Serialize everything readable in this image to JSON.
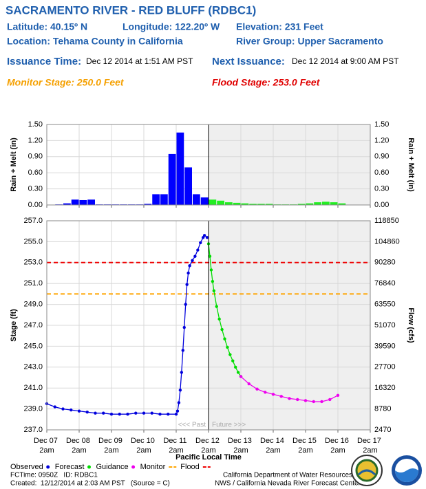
{
  "header": {
    "title": "SACRAMENTO RIVER - RED BLUFF (RDBC1)",
    "latitude": "Latitude: 40.15º N",
    "longitude": "Longitude: 122.20º W",
    "elevation": "Elevation: 231 Feet",
    "location": "Location: Tehama County in California",
    "river_group": "River Group: Upper Sacramento",
    "issuance_label": "Issuance Time:",
    "issuance_time": "Dec 12 2014 at 1:51 AM PST",
    "next_label": "Next Issuance:",
    "next_time": "Dec 12 2014 at 9:00 AM PST",
    "monitor_stage": "Monitor Stage: 250.0 Feet",
    "flood_stage": "Flood Stage: 253.0 Feet"
  },
  "chart_data": [
    {
      "type": "bar",
      "ylabel": "Rain + Melt (in)",
      "xlim": [
        "12-07T02:00",
        "12-17T02:00"
      ],
      "now": "12-12T02:00",
      "xticks": [
        "12-07T02:00",
        "12-08T02:00",
        "12-09T02:00",
        "12-10T02:00",
        "12-11T02:00",
        "12-12T02:00",
        "12-13T02:00",
        "12-14T02:00",
        "12-15T02:00",
        "12-16T02:00",
        "12-17T02:00"
      ],
      "ylim": [
        0,
        1.5
      ],
      "yticks": [
        {
          "value": 0,
          "label": "0.00"
        },
        {
          "value": 0.3,
          "label": "0.30"
        },
        {
          "value": 0.6,
          "label": "0.60"
        },
        {
          "value": 0.9,
          "label": "0.90"
        },
        {
          "value": 1.2,
          "label": "1.20"
        },
        {
          "value": 1.5,
          "label": "1.50"
        }
      ],
      "grid": true,
      "series": [
        {
          "color": "#0000ff",
          "x": [
            "12-07T02:00",
            "12-07T08:00",
            "12-07T14:00",
            "12-07T20:00",
            "12-08T02:00",
            "12-08T08:00",
            "12-08T14:00",
            "12-08T20:00",
            "12-09T02:00",
            "12-09T08:00",
            "12-09T14:00",
            "12-09T20:00",
            "12-10T02:00",
            "12-10T08:00",
            "12-10T14:00",
            "12-10T20:00",
            "12-11T02:00",
            "12-11T08:00",
            "12-11T14:00",
            "12-11T20:00"
          ],
          "values": [
            0,
            0.01,
            0.03,
            0.1,
            0.09,
            0.1,
            0.01,
            0.01,
            0.01,
            0.01,
            0.01,
            0.01,
            0.02,
            0.2,
            0.2,
            0.95,
            1.35,
            0.7,
            0.2,
            0.14
          ]
        },
        {
          "color": "#22ee22",
          "x": [
            "12-12T02:00",
            "12-12T08:00",
            "12-12T14:00",
            "12-12T20:00",
            "12-13T02:00",
            "12-13T08:00",
            "12-13T14:00",
            "12-13T20:00",
            "12-14T02:00",
            "12-14T08:00",
            "12-14T14:00",
            "12-14T20:00",
            "12-15T02:00",
            "12-15T08:00",
            "12-15T14:00",
            "12-15T20:00",
            "12-16T02:00",
            "12-16T08:00",
            "12-16T14:00",
            "12-16T20:00"
          ],
          "values": [
            0.1,
            0.08,
            0.05,
            0.04,
            0.03,
            0.02,
            0.02,
            0.02,
            0.01,
            0.01,
            0.01,
            0.02,
            0.03,
            0.05,
            0.06,
            0.05,
            0.03,
            0,
            0,
            0
          ]
        }
      ]
    },
    {
      "type": "line",
      "xlabel": "Pacific Local Time",
      "ylabel": "Stage (ft)",
      "y2label": "Flow (cfs)",
      "xlim": [
        "12-07T02:00",
        "12-17T02:00"
      ],
      "now": "12-12T02:00",
      "past_label": "<<< Past",
      "future_label": "Future >>>",
      "xticks": [
        {
          "value": "12-07T02:00",
          "label": "Dec 07 2am"
        },
        {
          "value": "12-08T02:00",
          "label": "Dec 08 2am"
        },
        {
          "value": "12-09T02:00",
          "label": "Dec 09 2am"
        },
        {
          "value": "12-10T02:00",
          "label": "Dec 10 2am"
        },
        {
          "value": "12-11T02:00",
          "label": "Dec 11 2am"
        },
        {
          "value": "12-12T02:00",
          "label": "Dec 12 2am"
        },
        {
          "value": "12-13T02:00",
          "label": "Dec 13 2am"
        },
        {
          "value": "12-14T02:00",
          "label": "Dec 14 2am"
        },
        {
          "value": "12-15T02:00",
          "label": "Dec 15 2am"
        },
        {
          "value": "12-16T02:00",
          "label": "Dec 16 2am"
        },
        {
          "value": "12-17T02:00",
          "label": "Dec 17 2am"
        }
      ],
      "ylim": [
        237,
        257
      ],
      "yticks": [
        {
          "value": 237,
          "label": "237.0"
        },
        {
          "value": 239,
          "label": "239.0"
        },
        {
          "value": 241,
          "label": "241.0"
        },
        {
          "value": 243,
          "label": "243.0"
        },
        {
          "value": 245,
          "label": "245.0"
        },
        {
          "value": 247,
          "label": "247.0"
        },
        {
          "value": 249,
          "label": "249.0"
        },
        {
          "value": 251,
          "label": "251.0"
        },
        {
          "value": 253,
          "label": "253.0"
        },
        {
          "value": 255,
          "label": "255.0"
        },
        {
          "value": 257,
          "label": "257.0"
        }
      ],
      "y2ticks": [
        2470,
        8780,
        16320,
        27700,
        39590,
        51070,
        63550,
        76840,
        90280,
        104860,
        118850
      ],
      "grid": true,
      "thresholds": [
        {
          "name": "Monitor",
          "value": 250,
          "color": "#ffa500"
        },
        {
          "name": "Flood",
          "value": 253,
          "color": "#ee0000"
        }
      ],
      "series": [
        {
          "name": "Observed",
          "color": "#0000dd",
          "x": [
            "12-07T02:00",
            "12-07T08:00",
            "12-07T14:00",
            "12-07T20:00",
            "12-08T02:00",
            "12-08T08:00",
            "12-08T14:00",
            "12-08T20:00",
            "12-09T02:00",
            "12-09T08:00",
            "12-09T14:00",
            "12-09T20:00",
            "12-10T02:00",
            "12-10T08:00",
            "12-10T14:00",
            "12-10T20:00",
            "12-11T02:00",
            "12-11T03:00",
            "12-11T04:00",
            "12-11T05:00",
            "12-11T06:00",
            "12-11T07:00",
            "12-11T08:00",
            "12-11T09:00",
            "12-11T10:00",
            "12-11T11:00",
            "12-11T12:00",
            "12-11T14:00",
            "12-11T16:00",
            "12-11T18:00",
            "12-11T20:00",
            "12-11T22:00",
            "12-11T23:00",
            "12-12T01:00"
          ],
          "values": [
            239.5,
            239.2,
            239.0,
            238.9,
            238.8,
            238.7,
            238.6,
            238.6,
            238.5,
            238.5,
            238.5,
            238.6,
            238.6,
            238.6,
            238.5,
            238.5,
            238.5,
            238.8,
            239.6,
            240.8,
            242.5,
            244.6,
            246.8,
            249.0,
            250.9,
            252.0,
            252.7,
            253.2,
            253.6,
            254.2,
            254.9,
            255.4,
            255.6,
            255.4
          ]
        },
        {
          "name": "Forecast",
          "color": "#00dd00",
          "x": [
            "12-12T02:00",
            "12-12T03:00",
            "12-12T04:00",
            "12-12T05:00",
            "12-12T06:00",
            "12-12T08:00",
            "12-12T10:00",
            "12-12T12:00",
            "12-12T14:00",
            "12-12T16:00",
            "12-12T18:00",
            "12-12T20:00",
            "12-12T22:00",
            "12-13T00:00",
            "12-13T02:00"
          ],
          "values": [
            254.8,
            253.6,
            252.3,
            251.2,
            250.3,
            248.8,
            247.6,
            246.6,
            245.7,
            244.9,
            244.2,
            243.6,
            243.0,
            242.5,
            242.1
          ]
        },
        {
          "name": "Guidance",
          "color": "#ee00ee",
          "x": [
            "12-13T02:00",
            "12-13T08:00",
            "12-13T14:00",
            "12-13T20:00",
            "12-14T02:00",
            "12-14T08:00",
            "12-14T14:00",
            "12-14T20:00",
            "12-15T02:00",
            "12-15T08:00",
            "12-15T14:00",
            "12-15T20:00",
            "12-16T02:00"
          ],
          "values": [
            242.1,
            241.4,
            240.9,
            240.6,
            240.4,
            240.2,
            240.0,
            239.9,
            239.8,
            239.7,
            239.7,
            239.9,
            240.3
          ]
        }
      ]
    }
  ],
  "footer": {
    "fctime": "FCTime: 0950Z   ID: RDBC1",
    "created": "Created:  12/12/2014 at 2:03 AM PST   (Source = C)",
    "agency1": "California Department of Water Resources",
    "agency2": "NWS / California Nevada River Forecast Center"
  }
}
